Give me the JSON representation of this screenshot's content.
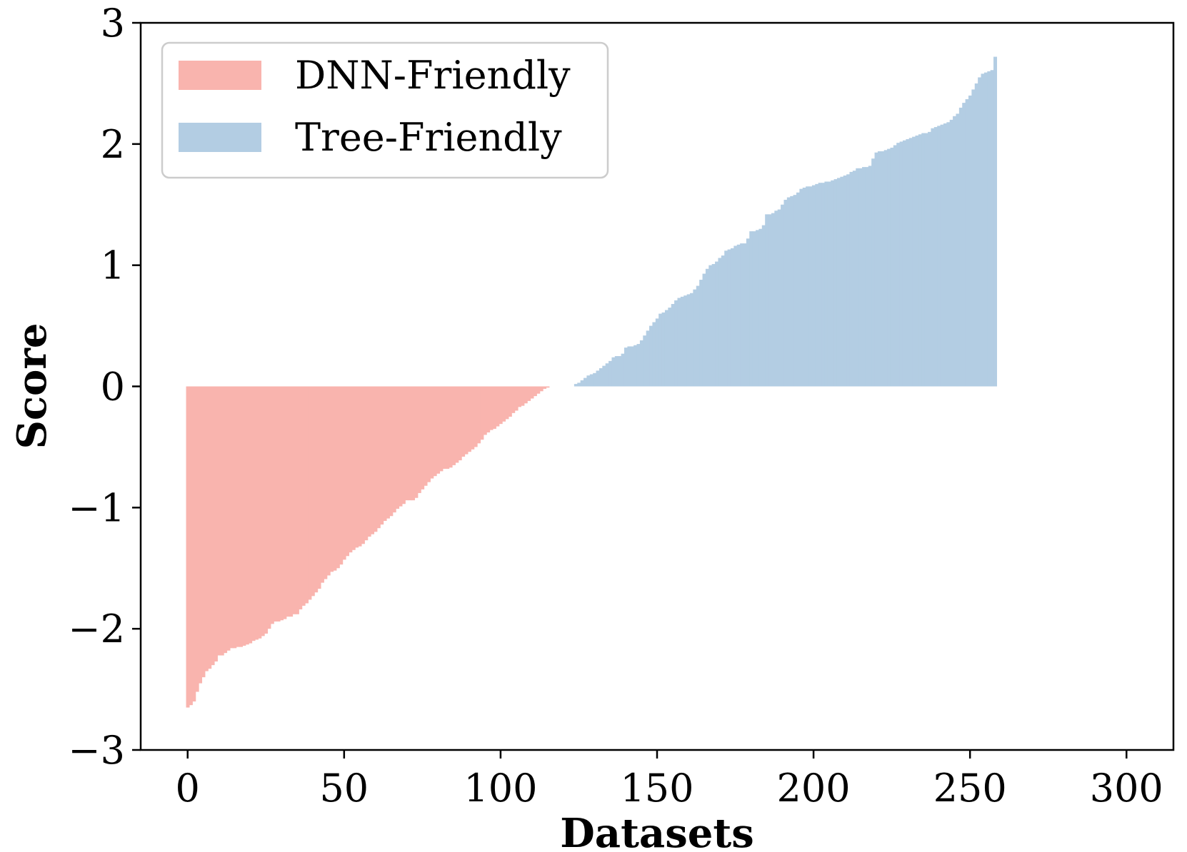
{
  "chart_data": {
    "type": "bar",
    "xlabel": "Datasets",
    "ylabel": "Score",
    "xlim": [
      -15,
      315
    ],
    "ylim": [
      -3,
      3
    ],
    "x_ticks": [
      0,
      50,
      100,
      150,
      200,
      250,
      300
    ],
    "y_ticks": [
      -3,
      -2,
      -1,
      0,
      1,
      2,
      3
    ],
    "x_tick_labels": [
      "0",
      "50",
      "100",
      "150",
      "200",
      "250",
      "300"
    ],
    "y_tick_labels": [
      "−3",
      "−2",
      "−1",
      "0",
      "1",
      "2",
      "3"
    ],
    "grid": false,
    "legend_position": "top-left",
    "series": [
      {
        "name": "DNN-Friendly",
        "color": "#f9b4ae",
        "x_start": 0,
        "values": [
          -2.65,
          -2.63,
          -2.6,
          -2.52,
          -2.45,
          -2.4,
          -2.35,
          -2.33,
          -2.3,
          -2.27,
          -2.22,
          -2.22,
          -2.2,
          -2.18,
          -2.16,
          -2.16,
          -2.15,
          -2.15,
          -2.14,
          -2.13,
          -2.12,
          -2.1,
          -2.09,
          -2.08,
          -2.06,
          -2.04,
          -2.0,
          -1.96,
          -1.94,
          -1.94,
          -1.93,
          -1.92,
          -1.9,
          -1.9,
          -1.88,
          -1.88,
          -1.84,
          -1.81,
          -1.79,
          -1.76,
          -1.73,
          -1.7,
          -1.67,
          -1.62,
          -1.59,
          -1.56,
          -1.53,
          -1.52,
          -1.5,
          -1.47,
          -1.43,
          -1.4,
          -1.37,
          -1.35,
          -1.33,
          -1.32,
          -1.3,
          -1.27,
          -1.24,
          -1.22,
          -1.2,
          -1.17,
          -1.14,
          -1.11,
          -1.09,
          -1.07,
          -1.04,
          -1.01,
          -0.99,
          -0.97,
          -0.94,
          -0.94,
          -0.94,
          -0.92,
          -0.88,
          -0.85,
          -0.82,
          -0.79,
          -0.76,
          -0.74,
          -0.72,
          -0.7,
          -0.68,
          -0.68,
          -0.67,
          -0.65,
          -0.63,
          -0.61,
          -0.58,
          -0.56,
          -0.54,
          -0.52,
          -0.5,
          -0.47,
          -0.44,
          -0.4,
          -0.38,
          -0.36,
          -0.35,
          -0.33,
          -0.31,
          -0.29,
          -0.27,
          -0.25,
          -0.22,
          -0.2,
          -0.17,
          -0.16,
          -0.14,
          -0.12,
          -0.1,
          -0.08,
          -0.06,
          -0.04,
          -0.02,
          -0.01
        ]
      },
      {
        "name": "Tree-Friendly",
        "color": "#b3cde3",
        "x_start": 124,
        "values": [
          0.02,
          0.03,
          0.05,
          0.07,
          0.09,
          0.1,
          0.11,
          0.13,
          0.15,
          0.17,
          0.19,
          0.21,
          0.24,
          0.25,
          0.25,
          0.27,
          0.32,
          0.33,
          0.33,
          0.34,
          0.35,
          0.38,
          0.42,
          0.46,
          0.5,
          0.53,
          0.56,
          0.6,
          0.61,
          0.63,
          0.65,
          0.68,
          0.71,
          0.73,
          0.74,
          0.75,
          0.76,
          0.77,
          0.8,
          0.83,
          0.88,
          0.93,
          0.97,
          1.0,
          1.01,
          1.03,
          1.06,
          1.08,
          1.12,
          1.13,
          1.14,
          1.16,
          1.17,
          1.18,
          1.18,
          1.22,
          1.28,
          1.28,
          1.29,
          1.3,
          1.33,
          1.42,
          1.42,
          1.43,
          1.45,
          1.46,
          1.5,
          1.54,
          1.56,
          1.57,
          1.58,
          1.6,
          1.63,
          1.64,
          1.65,
          1.65,
          1.66,
          1.67,
          1.68,
          1.68,
          1.69,
          1.69,
          1.7,
          1.71,
          1.72,
          1.73,
          1.74,
          1.75,
          1.77,
          1.78,
          1.8,
          1.8,
          1.81,
          1.81,
          1.82,
          1.88,
          1.93,
          1.94,
          1.94,
          1.95,
          1.96,
          1.97,
          1.99,
          2.01,
          2.02,
          2.03,
          2.04,
          2.05,
          2.06,
          2.07,
          2.08,
          2.09,
          2.09,
          2.1,
          2.13,
          2.14,
          2.15,
          2.16,
          2.17,
          2.18,
          2.2,
          2.23,
          2.25,
          2.3,
          2.34,
          2.37,
          2.4,
          2.45,
          2.5,
          2.55,
          2.58,
          2.59,
          2.6,
          2.61,
          2.72
        ]
      }
    ]
  }
}
